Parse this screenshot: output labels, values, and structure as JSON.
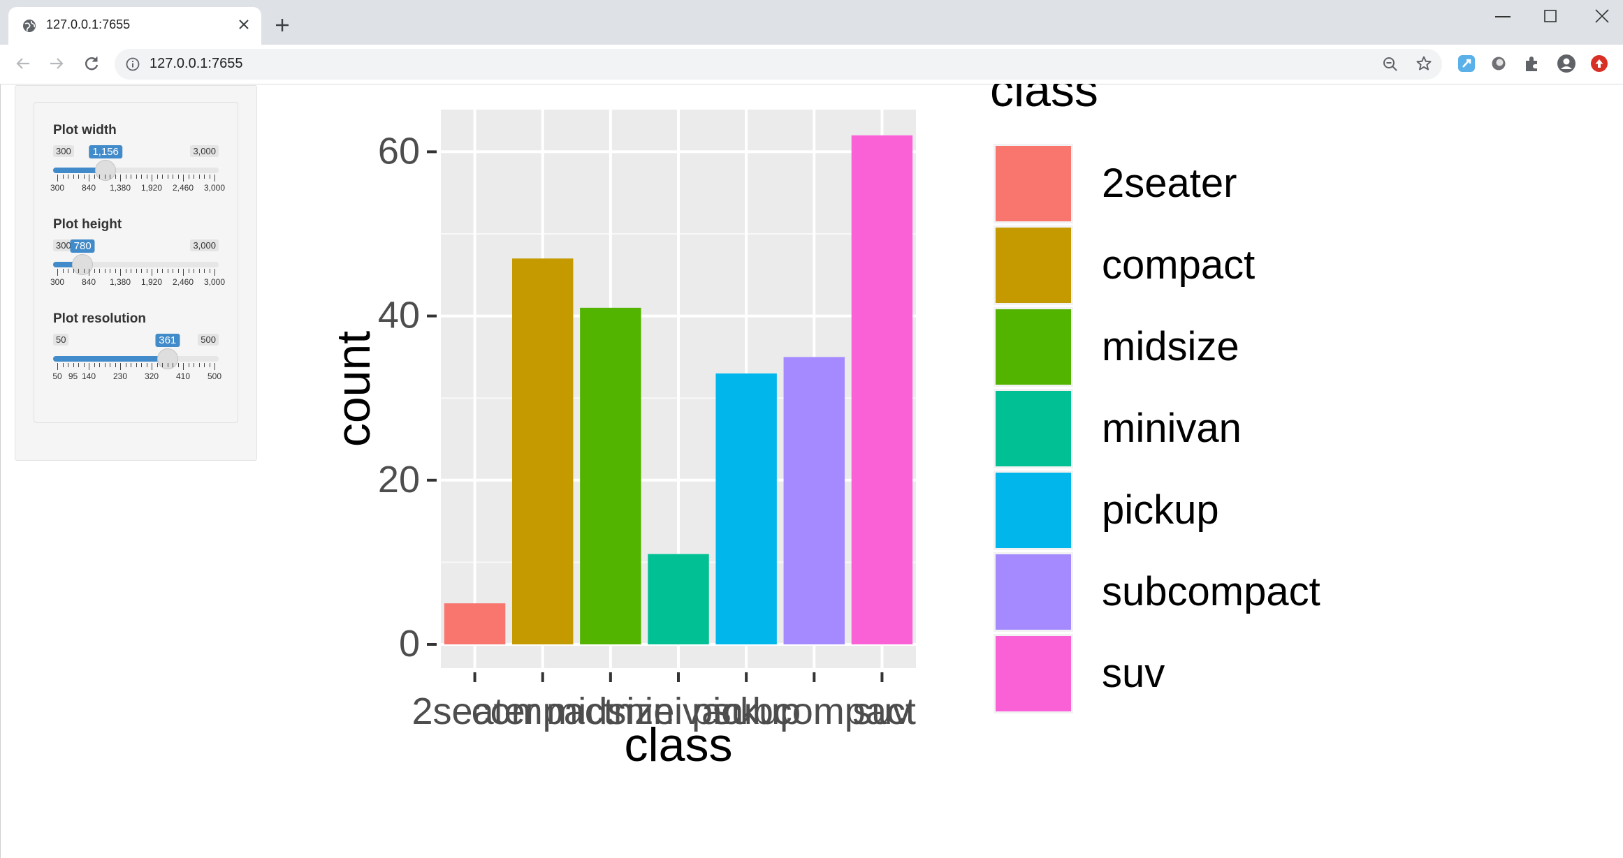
{
  "browser": {
    "tab_title": "127.0.0.1:7655",
    "url": "127.0.0.1:7655"
  },
  "sidebar": {
    "sliders": [
      {
        "label": "Plot width",
        "min_label": "300",
        "max_label": "3,000",
        "value_label": "1,156",
        "fraction": 0.317,
        "tick_labels": [
          "300",
          "840",
          "1,380",
          "1,920",
          "2,460",
          "3,000"
        ]
      },
      {
        "label": "Plot height",
        "min_label": "300",
        "max_label": "3,000",
        "value_label": "780",
        "fraction": 0.178,
        "tick_labels": [
          "300",
          "840",
          "1,380",
          "1,920",
          "2,460",
          "3,000"
        ]
      },
      {
        "label": "Plot resolution",
        "min_label": "50",
        "max_label": "500",
        "value_label": "361",
        "fraction": 0.691,
        "tick_labels": [
          "50",
          "95",
          "140",
          "230",
          "320",
          "410",
          "500"
        ],
        "tick_values": [
          50,
          95,
          140,
          230,
          320,
          410,
          500
        ]
      }
    ]
  },
  "colors": {
    "accent": "#428bca",
    "panel_bg": "#ebebeb"
  },
  "chart_data": {
    "type": "bar",
    "categories": [
      "2seater",
      "compact",
      "midsize",
      "minivan",
      "pickup",
      "subcompact",
      "suv"
    ],
    "values": [
      5,
      47,
      41,
      11,
      33,
      35,
      62
    ],
    "colors": [
      "#F8766D",
      "#C49A00",
      "#53B400",
      "#00C094",
      "#00B6EB",
      "#A58AFF",
      "#FB61D7"
    ],
    "xlabel": "class",
    "ylabel": "count",
    "ylim": [
      0,
      65
    ],
    "yticks": [
      0,
      20,
      40,
      60
    ],
    "grid": true,
    "legend_title": "class",
    "legend_placement": "right"
  }
}
